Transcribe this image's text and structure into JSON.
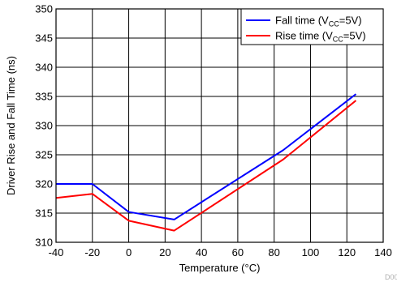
{
  "chart_data": {
    "type": "line",
    "xlabel": "Temperature (°C)",
    "ylabel": "Driver Rise and Fall Time (ns)",
    "xlim": [
      -40,
      140
    ],
    "ylim": [
      310,
      350
    ],
    "x_ticks": [
      -40,
      -20,
      0,
      20,
      40,
      60,
      80,
      100,
      120,
      140
    ],
    "y_ticks": [
      310,
      315,
      320,
      325,
      330,
      335,
      340,
      345,
      350
    ],
    "grid": true,
    "legend_position": "top-right",
    "series": [
      {
        "name_main": "Fall time (V",
        "name_sub": "CC",
        "name_tail": "=5V)",
        "color": "#0000ff",
        "x": [
          -40,
          -20,
          0,
          25,
          85,
          125
        ],
        "y": [
          320.0,
          320.0,
          315.2,
          313.9,
          325.8,
          335.4
        ]
      },
      {
        "name_main": "Rise time (V",
        "name_sub": "CC",
        "name_tail": "=5V)",
        "color": "#ff0000",
        "x": [
          -40,
          -20,
          0,
          25,
          85,
          125
        ],
        "y": [
          317.6,
          318.3,
          313.7,
          312.0,
          324.2,
          334.3
        ]
      }
    ]
  },
  "corner_id": "D00"
}
